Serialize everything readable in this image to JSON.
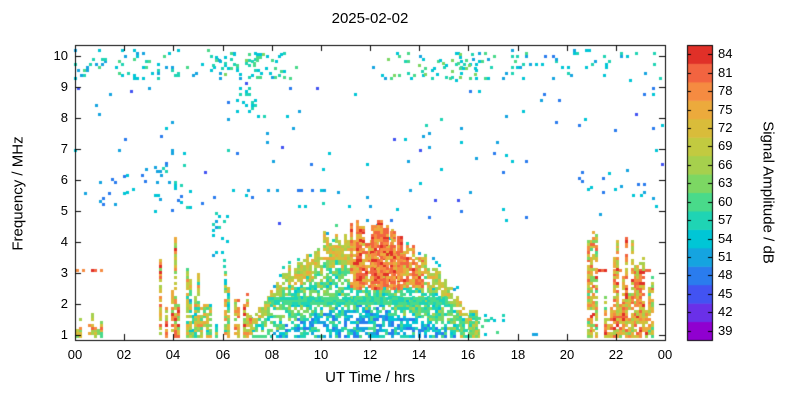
{
  "chart_data": {
    "type": "heatmap",
    "title": "2025-02-02",
    "xlabel": "UT Time / hrs",
    "ylabel": "Frequency / MHz",
    "colorbar_label": "Signal Amplitude / dB",
    "x_range_hours": [
      0,
      24
    ],
    "x_tick_step_hours": 2,
    "x_tick_labels": [
      "00",
      "02",
      "04",
      "06",
      "08",
      "10",
      "12",
      "14",
      "16",
      "18",
      "20",
      "22",
      "00"
    ],
    "y_range_mhz": [
      0.85,
      10.35
    ],
    "y_tick_values": [
      1,
      2,
      3,
      4,
      5,
      6,
      7,
      8,
      9,
      10
    ],
    "colorbar_range_db": [
      37.5,
      85.5
    ],
    "colorbar_tick_values": [
      39,
      42,
      45,
      48,
      51,
      54,
      57,
      60,
      63,
      66,
      69,
      72,
      75,
      78,
      81,
      84
    ],
    "palette_low_to_high": [
      "#9000d0",
      "#6a30e8",
      "#4253f2",
      "#2a7cee",
      "#15a4e0",
      "#00c6d6",
      "#1fd4b4",
      "#49da8a",
      "#7cd763",
      "#a6d04d",
      "#c2ca40",
      "#d9bc3a",
      "#ecaa3c",
      "#f58b41",
      "#f26440",
      "#e03028"
    ],
    "cell_hours": 0.12,
    "cell_mhz": 0.09,
    "grid": false,
    "features": [
      {
        "type": "speckle",
        "t": [
          0,
          24
        ],
        "f": [
          4.6,
          9.2
        ],
        "density": 0.012,
        "amp": [
          45,
          56
        ]
      },
      {
        "type": "speckle",
        "t": [
          0,
          9
        ],
        "f": [
          9.25,
          10.15
        ],
        "density": 0.1,
        "amp": [
          50,
          60
        ]
      },
      {
        "type": "speckle",
        "t": [
          12,
          18.5
        ],
        "f": [
          9.25,
          10.15
        ],
        "density": 0.09,
        "amp": [
          50,
          62
        ]
      },
      {
        "type": "speckle",
        "t": [
          18.5,
          24
        ],
        "f": [
          9.25,
          10.15
        ],
        "density": 0.05,
        "amp": [
          48,
          58
        ]
      },
      {
        "type": "speckle",
        "t": [
          5.5,
          8.5
        ],
        "f": [
          9.3,
          10.1
        ],
        "density": 0.17,
        "amp": [
          52,
          62
        ]
      },
      {
        "type": "speckle",
        "t": [
          14,
          16.3
        ],
        "f": [
          9.3,
          10.05
        ],
        "density": 0.15,
        "amp": [
          54,
          64
        ]
      },
      {
        "type": "speckle",
        "t": [
          6.6,
          7.35
        ],
        "f": [
          8.2,
          9.0
        ],
        "density": 0.2,
        "amp": [
          52,
          58
        ]
      },
      {
        "type": "speckle",
        "t": [
          0.3,
          2.4
        ],
        "f": [
          5.2,
          6.15
        ],
        "density": 0.07,
        "amp": [
          47,
          55
        ]
      },
      {
        "type": "speckle",
        "t": [
          3.1,
          4.7
        ],
        "f": [
          5.0,
          6.7
        ],
        "density": 0.09,
        "amp": [
          48,
          57
        ]
      },
      {
        "type": "speckle",
        "t": [
          2.0,
          3.1
        ],
        "f": [
          5.4,
          6.2
        ],
        "density": 0.05,
        "amp": [
          47,
          54
        ]
      },
      {
        "type": "speckle",
        "t": [
          20.4,
          23.6
        ],
        "f": [
          5.4,
          6.3
        ],
        "density": 0.05,
        "amp": [
          47,
          55
        ]
      },
      {
        "type": "speckle",
        "t": [
          16.2,
          17.7
        ],
        "f": [
          1.0,
          1.7
        ],
        "density": 0.12,
        "amp": [
          53,
          60
        ]
      },
      {
        "type": "speckle",
        "t": [
          18.5,
          18.8
        ],
        "f": [
          1.0,
          1.15
        ],
        "density": 0.4,
        "amp": [
          49,
          54
        ]
      },
      {
        "type": "speckle",
        "t": [
          5.6,
          6.3
        ],
        "f": [
          3.2,
          5.0
        ],
        "density": 0.1,
        "amp": [
          51,
          58
        ]
      },
      {
        "type": "dots",
        "f": 3.08,
        "t": [
          0.1,
          1.9
        ],
        "prob": 0.35,
        "amp": [
          78,
          84
        ]
      },
      {
        "type": "dots",
        "f": 3.08,
        "t": [
          21.2,
          23.85
        ],
        "prob": 0.35,
        "amp": [
          78,
          84
        ]
      },
      {
        "type": "dots",
        "f": 5.65,
        "t": [
          6.3,
          14.6
        ],
        "prob": 0.16,
        "amp": [
          48,
          53
        ]
      },
      {
        "type": "dots",
        "f": 5.6,
        "t": [
          2.7,
          4.6
        ],
        "prob": 0.14,
        "amp": [
          48,
          53
        ]
      },
      {
        "type": "arch",
        "t": [
          6.9,
          16.45
        ],
        "fpeak": 4.3,
        "pow": 0.85,
        "crest": {
          "t": [
            11.2,
            14.2
          ],
          "fmin": 2.55,
          "amp": [
            68,
            84
          ]
        },
        "band": {
          "t": [
            7.9,
            15.2
          ],
          "f": [
            2.0,
            2.2
          ],
          "amp": [
            56,
            61
          ]
        },
        "spikes": [
          {
            "t": 11.55,
            "f": 4.05
          },
          {
            "t": 12.15,
            "f": 4.5
          },
          {
            "t": 12.4,
            "f": 4.68
          },
          {
            "t": 12.62,
            "f": 4.5
          },
          {
            "t": 12.9,
            "f": 4.3
          },
          {
            "t": 13.2,
            "f": 4.15
          }
        ]
      },
      {
        "type": "burst",
        "t": [
          0.1,
          1.15
        ],
        "col_prob": 0.8,
        "fmax": [
          1.25,
          1.9
        ],
        "amp": [
          58,
          80
        ]
      },
      {
        "type": "burst",
        "t": [
          3.35,
          4.3
        ],
        "col_prob": 0.85,
        "fmax": [
          1.6,
          4.35
        ],
        "amp": [
          60,
          84
        ]
      },
      {
        "type": "burst",
        "t": [
          4.3,
          6.25
        ],
        "col_prob": 0.7,
        "fmax": [
          1.3,
          3.6
        ],
        "amp": [
          52,
          78
        ]
      },
      {
        "type": "burst",
        "t": [
          6.5,
          7.15
        ],
        "col_prob": 0.95,
        "fmax": [
          1.6,
          2.5
        ],
        "amp": [
          64,
          84
        ]
      },
      {
        "type": "burst",
        "t": [
          15.6,
          16.35
        ],
        "col_prob": 0.55,
        "fmax": [
          1.1,
          1.9
        ],
        "amp": [
          55,
          74
        ]
      },
      {
        "type": "burst",
        "t": [
          20.85,
          21.8
        ],
        "col_prob": 0.8,
        "fmax": [
          1.5,
          4.5
        ],
        "amp": [
          60,
          84
        ]
      },
      {
        "type": "burst",
        "t": [
          21.8,
          23.35
        ],
        "col_prob": 0.9,
        "fmax": [
          1.8,
          4.25
        ],
        "amp": [
          64,
          84
        ]
      },
      {
        "type": "burst",
        "t": [
          23.35,
          23.7
        ],
        "col_prob": 0.8,
        "fmax": [
          1.2,
          3.2
        ],
        "amp": [
          60,
          80
        ]
      }
    ]
  }
}
